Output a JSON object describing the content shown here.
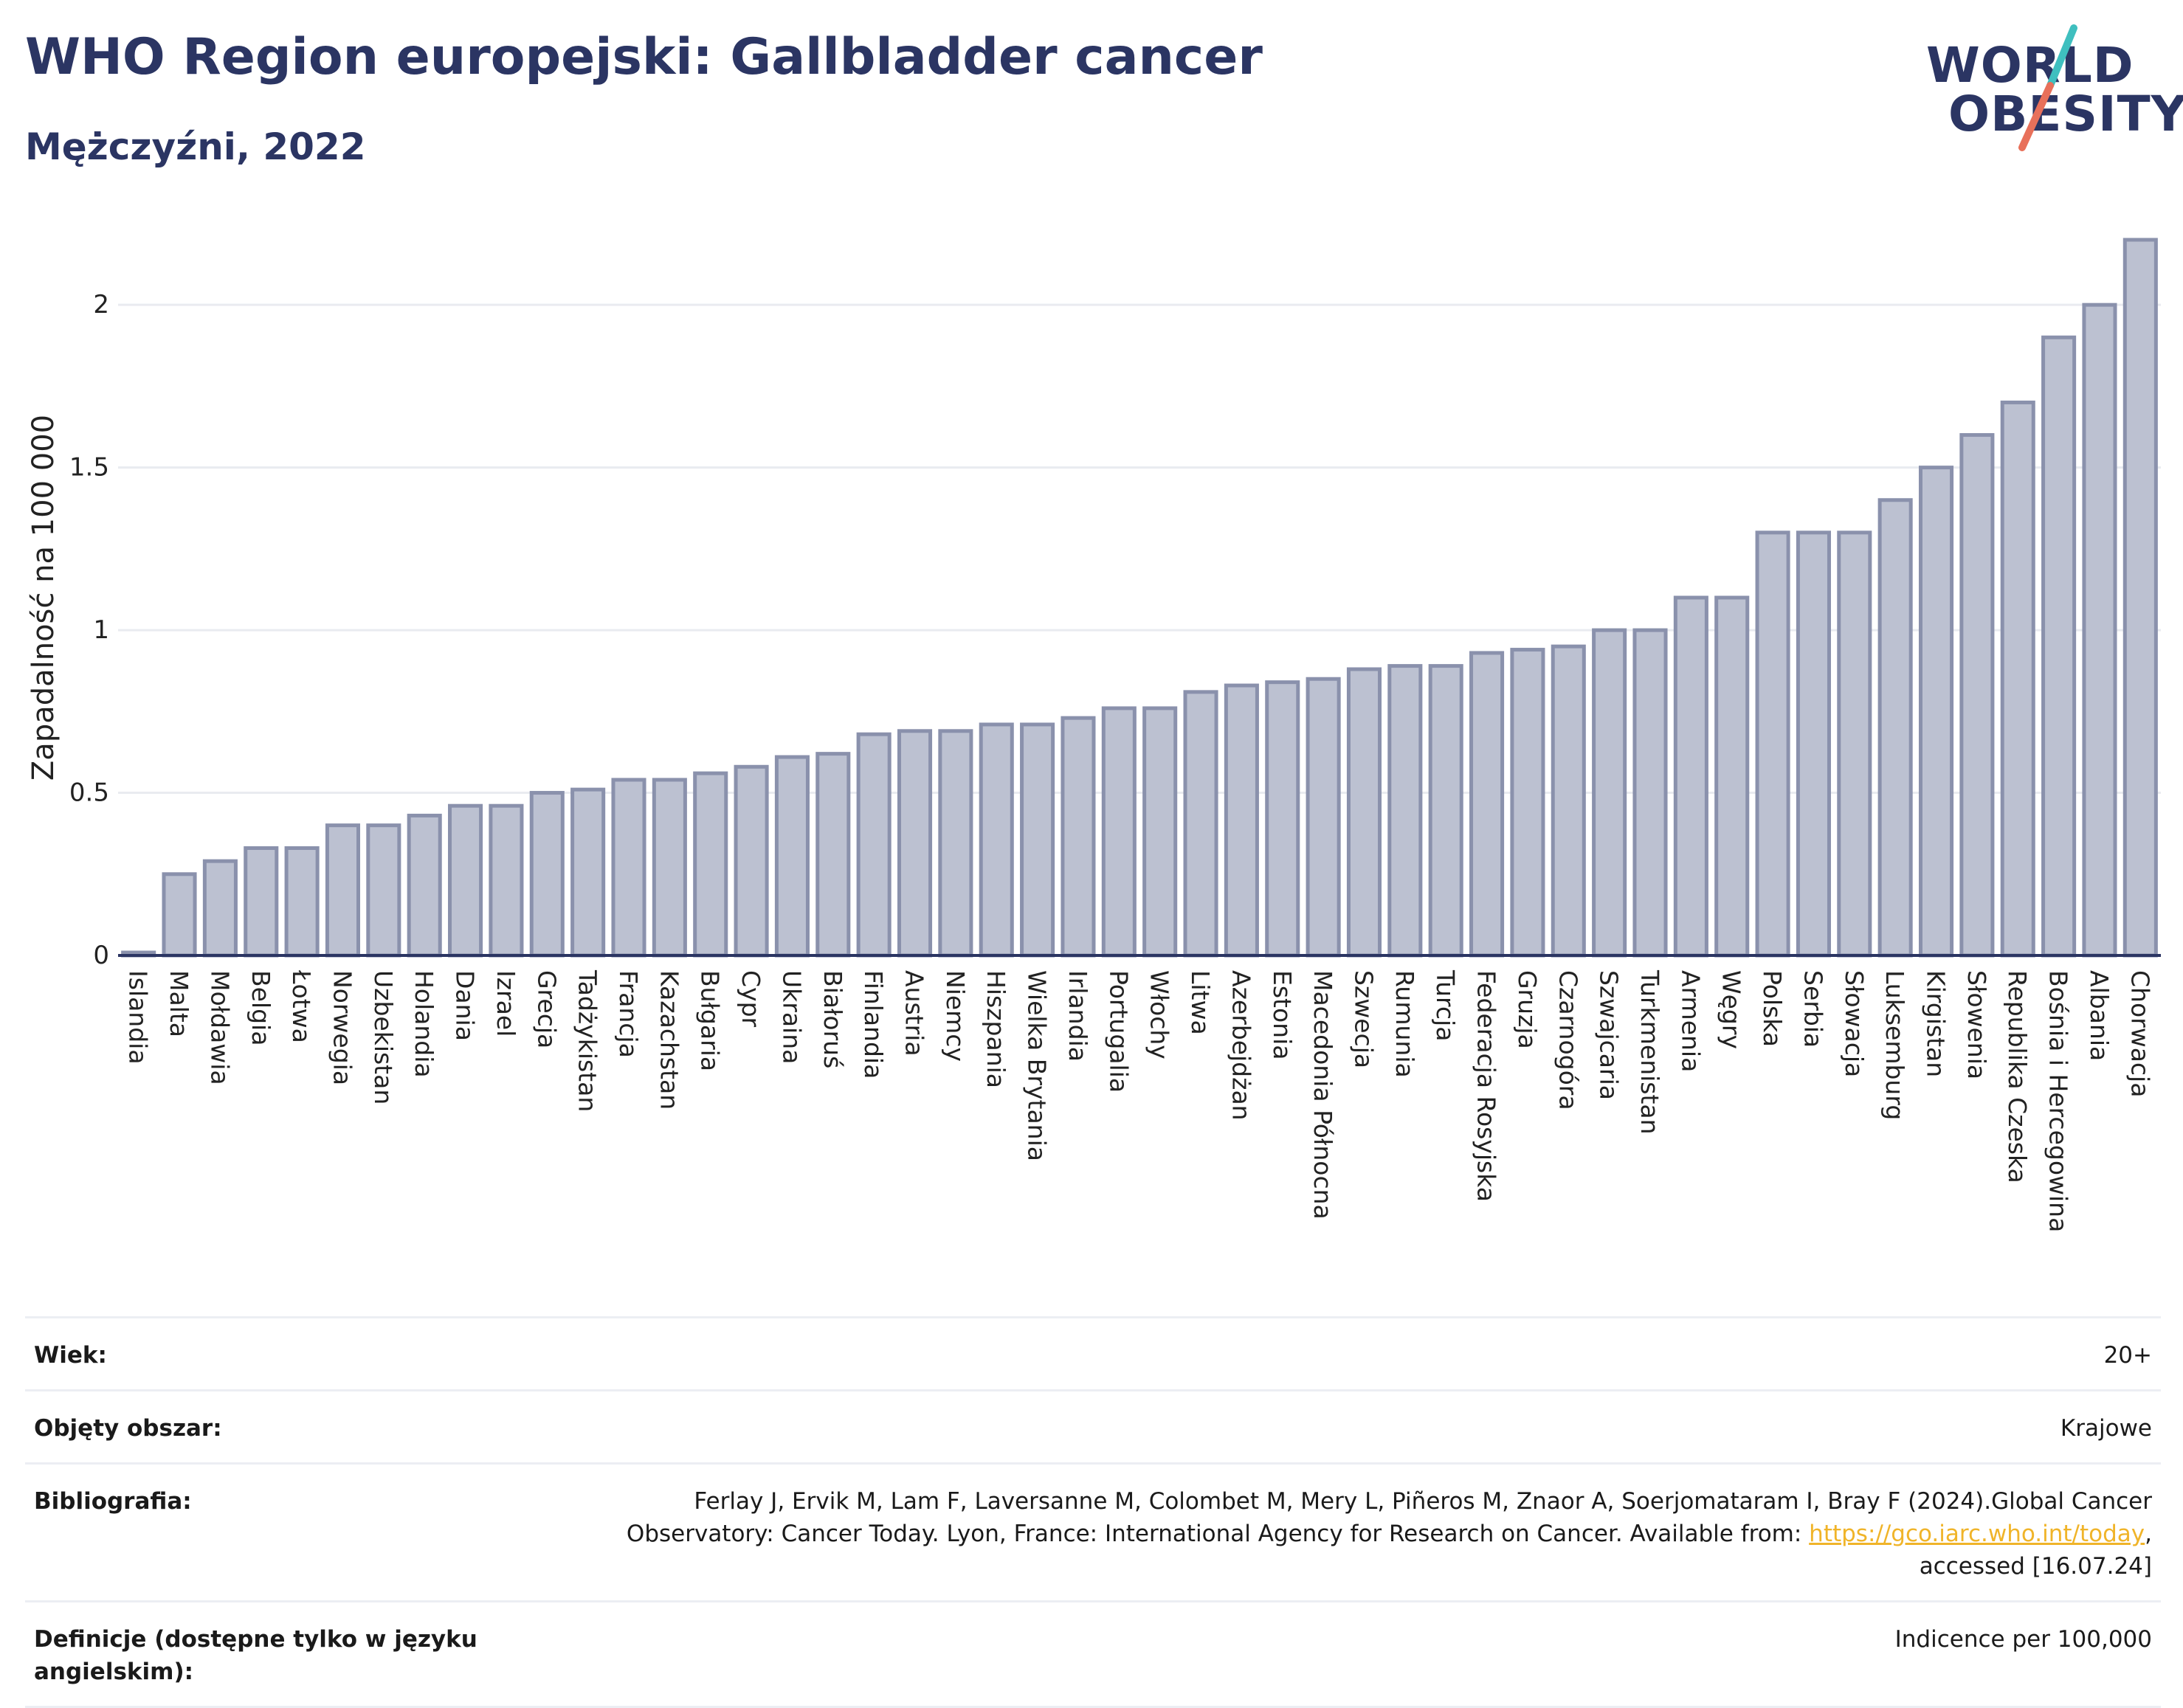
{
  "header": {
    "title": "WHO Region europejski: Gallbladder cancer",
    "subtitle": "Mężczyźni, 2022"
  },
  "logo": {
    "line1": "WORLD",
    "line2": "OBESITY",
    "accent_teal": "#3fbfbf",
    "accent_coral": "#e8705a"
  },
  "colors": {
    "bar_fill": "#bcc1d1",
    "bar_stroke": "#8a91ac",
    "text": "#2b3563",
    "link": "#f0b429"
  },
  "chart_data": {
    "type": "bar",
    "ylabel": "Zapadalność na 100 000",
    "ylim": [
      0,
      2.2
    ],
    "yticks": [
      0,
      0.5,
      1,
      1.5,
      2
    ],
    "ytick_labels": [
      "0",
      "0.5",
      "1",
      "1.5",
      "2"
    ],
    "grid": true,
    "categories": [
      "Islandia",
      "Malta",
      "Mołdawia",
      "Belgia",
      "Łotwa",
      "Norwegia",
      "Uzbekistan",
      "Holandia",
      "Dania",
      "Izrael",
      "Grecja",
      "Tadżykistan",
      "Francja",
      "Kazachstan",
      "Bułgaria",
      "Cypr",
      "Ukraina",
      "Białoruś",
      "Finlandia",
      "Austria",
      "Niemcy",
      "Hiszpania",
      "Wielka Brytania",
      "Irlandia",
      "Portugalia",
      "Włochy",
      "Litwa",
      "Azerbejdżan",
      "Estonia",
      "Macedonia Północna",
      "Szwecja",
      "Rumunia",
      "Turcja",
      "Federacja Rosyjska",
      "Gruzja",
      "Czarnogóra",
      "Szwajcaria",
      "Turkmenistan",
      "Armenia",
      "Węgry",
      "Polska",
      "Serbia",
      "Słowacja",
      "Luksemburg",
      "Kirgistan",
      "Słowenia",
      "Republika Czeska",
      "Bośnia i Hercegowina",
      "Albania",
      "Chorwacja"
    ],
    "values": [
      0.0,
      0.25,
      0.29,
      0.33,
      0.33,
      0.4,
      0.4,
      0.43,
      0.46,
      0.46,
      0.5,
      0.51,
      0.54,
      0.54,
      0.56,
      0.58,
      0.61,
      0.62,
      0.68,
      0.69,
      0.69,
      0.71,
      0.71,
      0.73,
      0.76,
      0.76,
      0.81,
      0.83,
      0.84,
      0.85,
      0.88,
      0.89,
      0.89,
      0.93,
      0.94,
      0.95,
      1.0,
      1.0,
      1.1,
      1.1,
      1.3,
      1.3,
      1.3,
      1.4,
      1.5,
      1.6,
      1.7,
      1.9,
      2.0,
      2.2
    ]
  },
  "info": {
    "rows": [
      {
        "key": "Wiek:",
        "value": "20+"
      },
      {
        "key": "Objęty obszar:",
        "value": "Krajowe"
      },
      {
        "key": "Bibliografia:",
        "value_line1": "Ferlay J, Ervik M, Lam F, Laversanne M, Colombet M, Mery L, Piñeros M, Znaor A, Soerjomataram I, Bray F (2024).Global Cancer",
        "value_line2_pre": "Observatory: Cancer Today. Lyon, France: International Agency for Research on Cancer. Available from: ",
        "link_text": "https://gco.iarc.who.int/today",
        "value_line2_post": ",",
        "value_line3": "accessed [16.07.24]"
      },
      {
        "key": "Definicje (dostępne tylko w języku angielskim):",
        "value": "Indicence per 100,000"
      }
    ]
  }
}
